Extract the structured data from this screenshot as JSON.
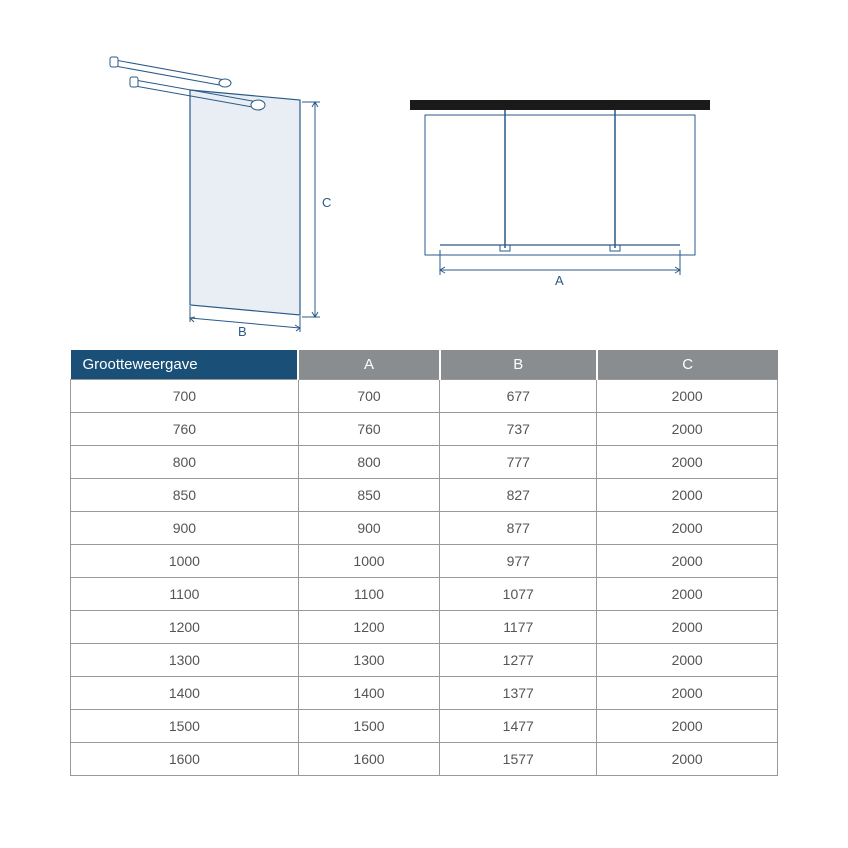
{
  "table": {
    "header_bg_first": "#1a5078",
    "header_bg_rest": "#8a8d90",
    "headers": [
      "Grootteweergave",
      "A",
      "B",
      "C"
    ],
    "col_widths": [
      "29%",
      "18%",
      "20%",
      "23%"
    ],
    "border_color": "#999999",
    "text_color": "#555555",
    "header_text_color": "#ffffff",
    "font_size_header": 15,
    "font_size_cell": 14,
    "rows": [
      [
        "700",
        "700",
        "677",
        "2000"
      ],
      [
        "760",
        "760",
        "737",
        "2000"
      ],
      [
        "800",
        "800",
        "777",
        "2000"
      ],
      [
        "850",
        "850",
        "827",
        "2000"
      ],
      [
        "900",
        "900",
        "877",
        "2000"
      ],
      [
        "1000",
        "1000",
        "977",
        "2000"
      ],
      [
        "1100",
        "1100",
        "1077",
        "2000"
      ],
      [
        "1200",
        "1200",
        "1177",
        "2000"
      ],
      [
        "1300",
        "1300",
        "1277",
        "2000"
      ],
      [
        "1400",
        "1400",
        "1377",
        "2000"
      ],
      [
        "1500",
        "1500",
        "1477",
        "2000"
      ],
      [
        "1600",
        "1600",
        "1577",
        "2000"
      ]
    ]
  },
  "diagram": {
    "line_color": "#2a5a8a",
    "glass_fill": "#e8eef4",
    "glass_stroke": "#2a5a8a",
    "label_C": "C",
    "label_B": "B",
    "label_A": "A",
    "wall_color": "#1a1a1a"
  }
}
